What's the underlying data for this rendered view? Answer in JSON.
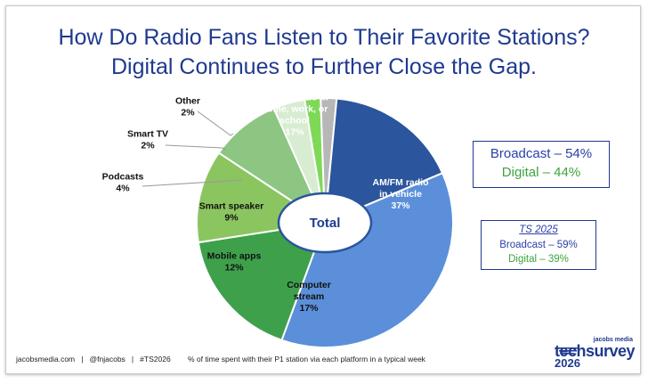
{
  "title": {
    "line1": "How Do Radio Fans Listen to Their Favorite Stations?",
    "line2": "Digital Continues to Further Close the Gap."
  },
  "chart_data": {
    "type": "pie",
    "center_label": "Total",
    "slices": [
      {
        "label": "AM/FM radio in vehicle",
        "value": 37,
        "display_value": "37%",
        "color": "#5b8fd9"
      },
      {
        "label": "Computer stream",
        "value": 17,
        "display_value": "17%",
        "color": "#3fa04c"
      },
      {
        "label": "Mobile apps",
        "value": 12,
        "display_value": "12%",
        "color": "#8bc560"
      },
      {
        "label": "Smart speaker",
        "value": 9,
        "display_value": "9%",
        "color": "#8dc582"
      },
      {
        "label": "Podcasts",
        "value": 4,
        "display_value": "4%",
        "color": "#d8ecd2"
      },
      {
        "label": "Smart TV",
        "value": 2,
        "display_value": "2%",
        "color": "#7ed957"
      },
      {
        "label": "Other",
        "value": 2,
        "display_value": "2%",
        "color": "#b7b7b7"
      },
      {
        "label": "AM/FM radio at home, work, or school",
        "value": 17,
        "display_value": "17%",
        "color": "#2b559c"
      }
    ],
    "inside_labels": [
      {
        "lines": [
          "AM/FM radio",
          "in vehicle",
          "37%"
        ],
        "color": "#ffffff"
      },
      {
        "lines": [
          "Computer",
          "stream",
          "17%"
        ],
        "color": "#111111"
      },
      {
        "lines": [
          "Mobile apps",
          "12%"
        ],
        "color": "#111111"
      },
      {
        "lines": [
          "Smart speaker",
          "9%"
        ],
        "color": "#111111"
      },
      {
        "lines": [
          "AM/FM radio at",
          "home, work, or",
          "school",
          "17%"
        ],
        "color": "#ffffff"
      }
    ],
    "callout_labels": [
      {
        "lines": [
          "Other",
          "2%"
        ]
      },
      {
        "lines": [
          "Smart TV",
          "2%"
        ]
      },
      {
        "lines": [
          "Podcasts",
          "4%"
        ]
      }
    ]
  },
  "summary_box": {
    "broadcast": "Broadcast – 54%",
    "digital": "Digital – 44%"
  },
  "ts2025_box": {
    "heading": "TS 2025",
    "broadcast": "Broadcast – 59%",
    "digital": "Digital – 39%"
  },
  "footer": {
    "left": "jacobsmedia.com   |   @fnjacobs   |   #TS2026",
    "note": "% of time spent with their P1 station via each platform in a typical week"
  },
  "logo": {
    "top": "jacobs media",
    "main": "techsurvey",
    "year": "2026"
  }
}
